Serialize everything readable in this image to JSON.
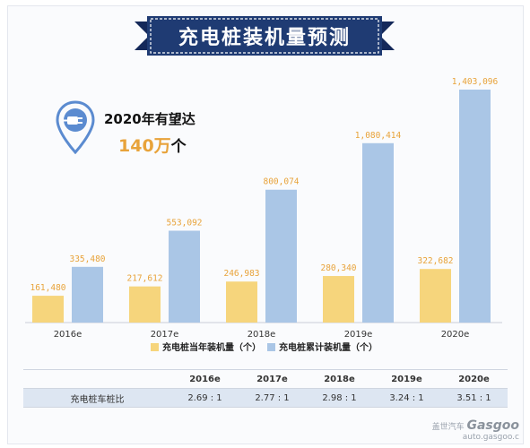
{
  "title": "充电桩装机量预测",
  "callout": {
    "line1": "2020年有望达",
    "number": "140万",
    "unit": "个",
    "icon": "charging-plug-pin-icon"
  },
  "colors": {
    "banner": "#1f3b73",
    "yellow_bar": "#f6d57c",
    "blue_bar": "#aac6e6",
    "yellow_label": "#e8a33a",
    "blue_label": "#e8a33a",
    "icon": "#5b8bd0"
  },
  "chart_data": {
    "type": "bar",
    "categories": [
      "2016e",
      "2017e",
      "2018e",
      "2019e",
      "2020e"
    ],
    "series": [
      {
        "name": "充电桩当年装机量（个）",
        "values": [
          161480,
          217612,
          246983,
          280340,
          322682
        ],
        "labels": [
          "161,480",
          "217,612",
          "246,983",
          "280,340",
          "322,682"
        ]
      },
      {
        "name": "充电桩累计装机量（个）",
        "values": [
          335480,
          553092,
          800074,
          1080414,
          1403096
        ],
        "labels": [
          "335,480",
          "553,092",
          "800,074",
          "1,080,414",
          "1,403,096"
        ]
      }
    ],
    "legend_position": "bottom",
    "grid": false
  },
  "table": {
    "headers": [
      "",
      "2016e",
      "2017e",
      "2018e",
      "2019e",
      "2020e"
    ],
    "rows": [
      [
        "充电桩车桩比",
        "2.69 : 1",
        "2.77 : 1",
        "2.98 : 1",
        "3.24 : 1",
        "3.51 : 1"
      ]
    ]
  },
  "watermark": {
    "brand": "Gasgoo",
    "sub": "盖世汽车",
    "url": "auto.gasgoo.c"
  }
}
